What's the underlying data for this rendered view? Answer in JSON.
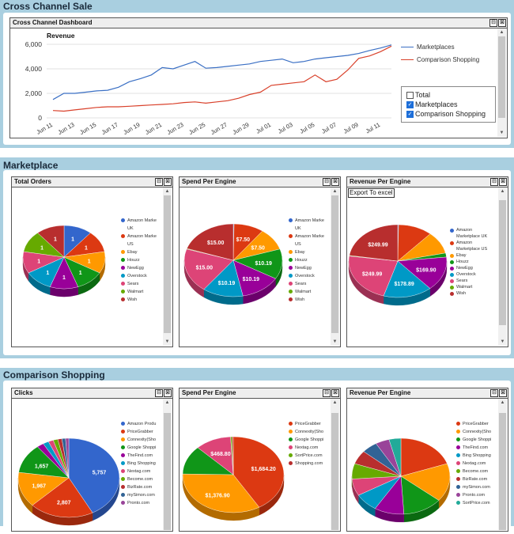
{
  "sections": {
    "cross_channel": "Cross Channel Sale",
    "marketplace": "Marketplace",
    "comparison": "Comparison Shopping"
  },
  "dashboard": {
    "title": "Cross Channel Dashboard",
    "chart_title": "Revenue",
    "legend": [
      "Marketplaces",
      "Comparison Shopping"
    ],
    "checkboxes": [
      {
        "label": "Total",
        "checked": false
      },
      {
        "label": "Marketplaces",
        "checked": true
      },
      {
        "label": "Comparison Shopping",
        "checked": true
      }
    ]
  },
  "panels": {
    "total_orders": "Total Orders",
    "spend_per_engine_1": "Spend Per Engine",
    "revenue_per_engine_1": "Revenue Per Engine",
    "clicks": "Clicks",
    "spend_per_engine_2": "Spend Per Engine",
    "revenue_per_engine_2": "Revenue Per Engine",
    "export_label": "Export To excel"
  },
  "legends": {
    "marketplace_a": [
      "Amazon Marke UK",
      "Amazon Marke US",
      "Ebay",
      "Houzz",
      "NewEgg",
      "Overstock",
      "Sears",
      "Walmart",
      "Wish"
    ],
    "marketplace_b": [
      "Amazon Marketplace UK",
      "Amazon Marketplace US",
      "Ebay",
      "Houzz",
      "NewEgg",
      "Overstock",
      "Sears",
      "Walmart",
      "Wish"
    ],
    "clicks": [
      "Amazon Produ",
      "PriceGrabber",
      "Connexity(Sho",
      "Google Shoppi",
      "TheFind.com",
      "Bing Shopping",
      "Nextag.com",
      "Become.com",
      "BizRate.com",
      "mySimon.com",
      "Pronto.com"
    ],
    "spend2": [
      "PriceGrabber",
      "Connexity(Sho",
      "Google Shoppi",
      "Nextag.com",
      "SortPrice.com",
      "Shopping.com"
    ],
    "revenue2": [
      "PriceGrabber",
      "Connexity(Sho",
      "Google Shoppi",
      "TheFind.com",
      "Bing Shopping",
      "Nextag.com",
      "Become.com",
      "BizRate.com",
      "mySimon.com",
      "Pronto.com",
      "SortPrice.com"
    ]
  },
  "colors": {
    "marketplace": [
      "#3366cc",
      "#dc3912",
      "#ff9900",
      "#109618",
      "#990099",
      "#0099c6",
      "#dd4477",
      "#66aa00",
      "#b82e2e"
    ],
    "clicks": [
      "#3366cc",
      "#dc3912",
      "#ff9900",
      "#109618",
      "#990099",
      "#0099c6",
      "#dd4477",
      "#66aa00",
      "#b82e2e",
      "#316395",
      "#994499"
    ],
    "spend2": [
      "#dc3912",
      "#ff9900",
      "#109618",
      "#dd4477",
      "#66aa00",
      "#b82e2e"
    ],
    "revenue2": [
      "#dc3912",
      "#ff9900",
      "#109618",
      "#990099",
      "#0099c6",
      "#dd4477",
      "#66aa00",
      "#b82e2e",
      "#316395",
      "#994499",
      "#22aa99"
    ]
  },
  "chart_data": [
    {
      "type": "line",
      "title": "Revenue",
      "x": [
        "Jun 11",
        "Jun 12",
        "Jun 13",
        "Jun 14",
        "Jun 15",
        "Jun 16",
        "Jun 17",
        "Jun 18",
        "Jun 19",
        "Jun 20",
        "Jun 21",
        "Jun 22",
        "Jun 23",
        "Jun 24",
        "Jun 25",
        "Jun 26",
        "Jun 27",
        "Jun 28",
        "Jun 29",
        "Jun 30",
        "Jul 01",
        "Jul 02",
        "Jul 03",
        "Jul 04",
        "Jul 05",
        "Jul 06",
        "Jul 07",
        "Jul 08",
        "Jul 09",
        "Jul 10",
        "Jul 11",
        "Jul 12"
      ],
      "xticks": [
        "Jun 11",
        "Jun 13",
        "Jun 15",
        "Jun 17",
        "Jun 19",
        "Jun 21",
        "Jun 23",
        "Jun 25",
        "Jun 27",
        "Jun 29",
        "Jul 01",
        "Jul 03",
        "Jul 05",
        "Jul 07",
        "Jul 09",
        "Jul 11"
      ],
      "yticks": [
        "0",
        "2,000",
        "4,000",
        "6,000"
      ],
      "ylim": [
        0,
        6000
      ],
      "series": [
        {
          "name": "Marketplaces",
          "color": "#3a6fc4",
          "values": [
            1500,
            2000,
            2000,
            2100,
            2200,
            2250,
            2500,
            2950,
            3200,
            3500,
            4100,
            4000,
            4300,
            4600,
            4050,
            4100,
            4200,
            4300,
            4400,
            4600,
            4700,
            4800,
            4500,
            4600,
            4800,
            4900,
            5000,
            5100,
            5250,
            5500,
            5700,
            5950
          ]
        },
        {
          "name": "Comparison Shopping",
          "color": "#d9412b",
          "values": [
            600,
            550,
            650,
            750,
            850,
            900,
            900,
            950,
            1000,
            1050,
            1100,
            1150,
            1250,
            1300,
            1200,
            1300,
            1400,
            1600,
            1900,
            2100,
            2650,
            2750,
            2850,
            2950,
            3500,
            2950,
            3150,
            3900,
            4850,
            5050,
            5400,
            5850
          ]
        }
      ]
    },
    {
      "type": "pie",
      "title": "Total Orders",
      "labels": [
        "Amazon Marke UK",
        "Amazon Marke US",
        "Ebay",
        "Houzz",
        "NewEgg",
        "Overstock",
        "Sears",
        "Walmart",
        "Wish"
      ],
      "values": [
        1,
        1,
        1,
        1,
        1,
        1,
        1,
        1,
        1
      ],
      "data_labels": [
        "1",
        "1",
        "1",
        "1",
        "1",
        "1",
        "1",
        "1",
        "1"
      ]
    },
    {
      "type": "pie",
      "title": "Spend Per Engine",
      "labels": [
        "Amazon Marke UK",
        "Amazon Marke US",
        "Ebay",
        "Houzz",
        "NewEgg",
        "Overstock",
        "Sears",
        "Walmart",
        "Wish"
      ],
      "values": [
        0.2,
        7.5,
        7.5,
        10.19,
        10.19,
        10.19,
        15.0,
        0.2,
        15.0
      ],
      "data_labels": [
        "",
        "$7.50",
        "$7.50",
        "$10.19",
        "$10.19",
        "$10.19",
        "$15.00",
        "",
        "$15.00"
      ]
    },
    {
      "type": "pie",
      "title": "Revenue Per Engine",
      "labels": [
        "Amazon Marketplace UK",
        "Amazon Marketplace US",
        "Ebay",
        "Houzz",
        "NewEgg",
        "Overstock",
        "Sears",
        "Walmart",
        "Wish"
      ],
      "values": [
        3,
        125,
        110,
        20,
        169.9,
        178.89,
        249.99,
        3,
        249.99
      ],
      "data_labels": [
        "",
        "",
        "",
        "",
        "$169.90",
        "$178.89",
        "$249.99",
        "",
        "$249.99"
      ]
    },
    {
      "type": "pie",
      "title": "Clicks",
      "labels": [
        "Amazon Produ",
        "PriceGrabber",
        "Connexity(Sho",
        "Google Shoppi",
        "TheFind.com",
        "Bing Shopping",
        "Nextag.com",
        "Become.com",
        "BizRate.com",
        "mySimon.com",
        "Pronto.com"
      ],
      "values": [
        5757,
        2807,
        1967,
        1657,
        300,
        250,
        220,
        200,
        180,
        160,
        140
      ],
      "data_labels": [
        "5,757",
        "2,807",
        "1,967",
        "1,657",
        "",
        "",
        "",
        "",
        "",
        "",
        ""
      ]
    },
    {
      "type": "pie",
      "title": "Spend Per Engine",
      "labels": [
        "PriceGrabber",
        "Connexity(Sho",
        "Google Shoppi",
        "Nextag.com",
        "SortPrice.com",
        "Shopping.com"
      ],
      "values": [
        1684.2,
        1376.9,
        500,
        468.8,
        20,
        15
      ],
      "data_labels": [
        "$1,684.20",
        "$1,376.90",
        "",
        "$468.80",
        "",
        ""
      ]
    },
    {
      "type": "pie",
      "title": "Revenue Per Engine",
      "labels": [
        "PriceGrabber",
        "Connexity(Sho",
        "Google Shoppi",
        "TheFind.com",
        "Bing Shopping",
        "Nextag.com",
        "Become.com",
        "BizRate.com",
        "mySimon.com",
        "Pronto.com",
        "SortPrice.com"
      ],
      "values": [
        30,
        25,
        20,
        15,
        12,
        11,
        10,
        9,
        8,
        7,
        6
      ],
      "data_labels": [
        "",
        "",
        "",
        "",
        "",
        "",
        "",
        "",
        "",
        "",
        ""
      ]
    }
  ]
}
